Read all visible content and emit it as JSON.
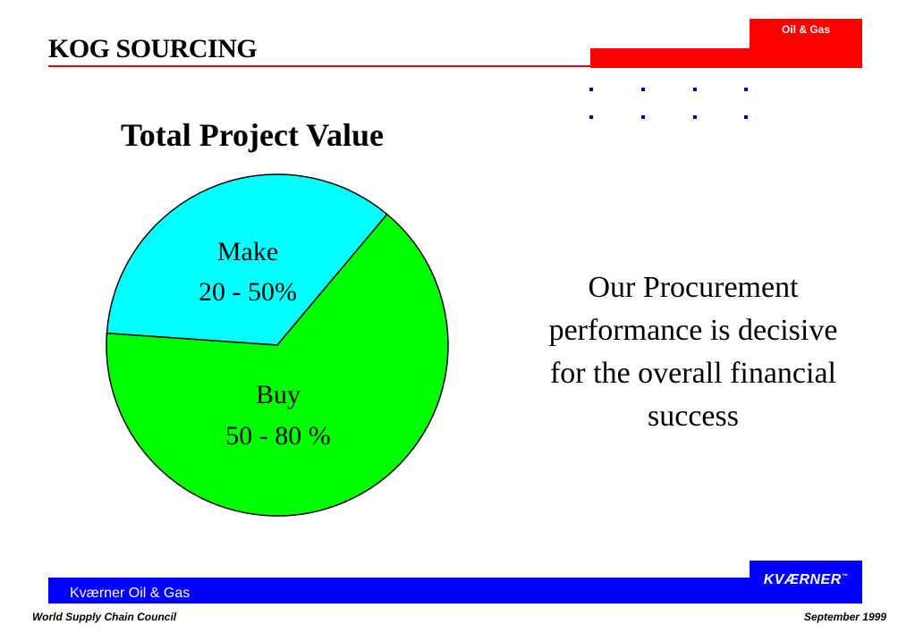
{
  "header": {
    "title": "KOG SOURCING",
    "brand_tab": "Oil & Gas",
    "accent_color": "#ff0000"
  },
  "chart_data": {
    "type": "pie",
    "title": "Total Project Value",
    "slices": [
      {
        "name": "Make",
        "range": "20 - 50%",
        "value": 35,
        "color": "#00ffff"
      },
      {
        "name": "Buy",
        "range": "50 - 80 %",
        "value": 65,
        "color": "#00ff00"
      }
    ]
  },
  "body": {
    "lines": [
      "Our Procurement",
      "performance is decisive",
      "for the overall financial",
      "success"
    ]
  },
  "footer": {
    "company": "Kværner Oil & Gas",
    "logo": "KVÆRNER",
    "logo_mark": "™",
    "left_note": "World Supply Chain Council",
    "right_note": "September 1999",
    "bar_color": "#0000ff"
  }
}
